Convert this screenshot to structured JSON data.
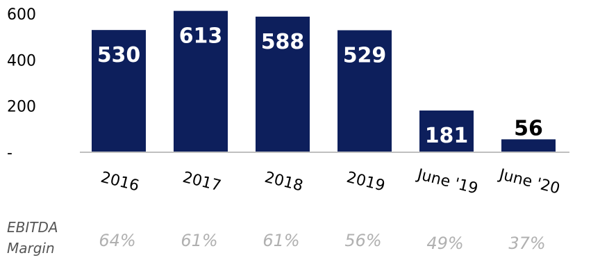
{
  "colors": {
    "bar": "#0d1f5c",
    "bar_label_inside": "#ffffff",
    "bar_label_outside": "#000000",
    "axis": "#bfbfbf",
    "margin_text": "#b0b0b0"
  },
  "chart_data": {
    "type": "bar",
    "categories": [
      "2016",
      "2017",
      "2018",
      "2019",
      "June '19",
      "June '20"
    ],
    "values": [
      530,
      613,
      588,
      529,
      181,
      56
    ],
    "ylim": [
      0,
      630
    ],
    "yticks": [
      {
        "value": 0,
        "label": "-"
      },
      {
        "value": 200,
        "label": "200"
      },
      {
        "value": 400,
        "label": "400"
      },
      {
        "value": 600,
        "label": "600"
      }
    ],
    "grid": false,
    "ebitda_margin": {
      "label_line1": "EBITDA",
      "label_line2": "Margin",
      "values": [
        "64%",
        "61%",
        "61%",
        "56%",
        "49%",
        "37%"
      ]
    }
  }
}
